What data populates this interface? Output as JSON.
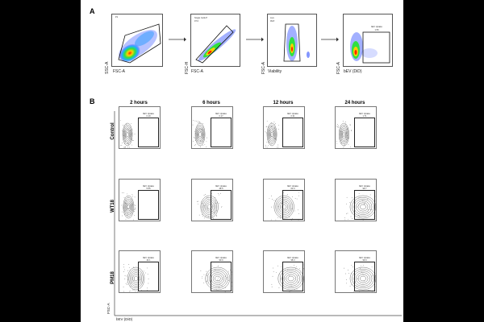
{
  "panel_a": {
    "letter": "A",
    "plots": [
      {
        "x_label": "FSC-A",
        "y_label": "SSC-A",
        "gate_name": "P1",
        "gate_value": ""
      },
      {
        "x_label": "FSC-A",
        "y_label": "FSC-H",
        "gate_name": "Single Cells P",
        "gate_value": "97.0"
      },
      {
        "x_label": "Viability",
        "y_label": "FSC-A",
        "gate_name": "Live",
        "gate_value": "99.8"
      },
      {
        "x_label": "bEV (DiD)",
        "y_label": "FSC-A",
        "gate_name": "bEV Uptake",
        "gate_value": "1.56"
      }
    ]
  },
  "panel_b": {
    "letter": "B",
    "time_points": [
      "2 hours",
      "6 hours",
      "12 hours",
      "24 hours"
    ],
    "conditions": [
      "Control",
      "WT18",
      "PM18"
    ],
    "gate_name": "bEV Uptake",
    "gate_values": [
      [
        "0.19",
        "0.17",
        "0.31",
        "1.71"
      ],
      [
        "5.55",
        "48.5",
        "63.3",
        "99.7"
      ],
      [
        "44.1",
        "90.9",
        "98.3",
        "99.9"
      ]
    ],
    "x_axis_label": "bEV (DiD)",
    "y_axis_label": "FSC-A"
  }
}
